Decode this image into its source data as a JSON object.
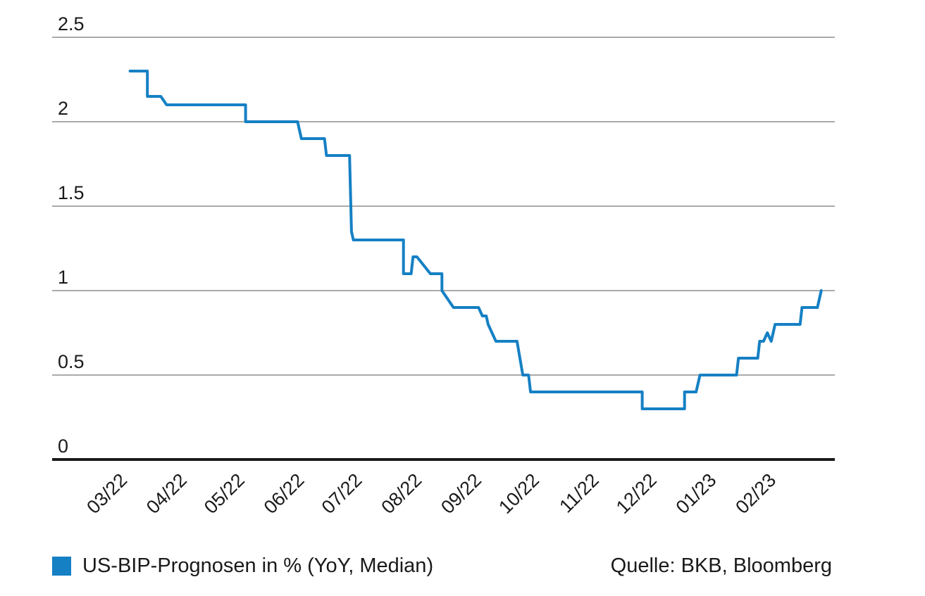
{
  "chart_data": {
    "type": "line",
    "title": "",
    "xlabel": "",
    "ylabel": "",
    "ylim": [
      0,
      2.5
    ],
    "y_ticks": [
      0,
      0.5,
      1,
      1.5,
      2,
      2.5
    ],
    "y_tick_labels": [
      "0",
      "0.5",
      "1",
      "1.5",
      "2",
      "2.5"
    ],
    "x_ticks": [
      "2022-03-01",
      "2022-04-01",
      "2022-05-01",
      "2022-06-01",
      "2022-07-01",
      "2022-08-01",
      "2022-09-01",
      "2022-10-01",
      "2022-11-01",
      "2022-12-01",
      "2023-01-01",
      "2023-02-01"
    ],
    "x_tick_labels": [
      "03/22",
      "04/22",
      "05/22",
      "06/22",
      "07/22",
      "08/22",
      "09/22",
      "10/22",
      "11/22",
      "12/22",
      "01/23",
      "02/23"
    ],
    "grid": true,
    "legend": "bottom-left",
    "series": [
      {
        "name": "US-BIP-Prognosen in % (YoY, Median)",
        "color": "#1580c4",
        "x": [
          "2022-03-10",
          "2022-03-19",
          "2022-03-19",
          "2022-03-26",
          "2022-03-29",
          "2022-05-09",
          "2022-05-09",
          "2022-06-05",
          "2022-06-07",
          "2022-06-19",
          "2022-06-20",
          "2022-07-02",
          "2022-07-03",
          "2022-07-04",
          "2022-07-06",
          "2022-07-30",
          "2022-07-30",
          "2022-08-03",
          "2022-08-04",
          "2022-08-06",
          "2022-08-13",
          "2022-08-13",
          "2022-08-19",
          "2022-08-19",
          "2022-08-25",
          "2022-09-07",
          "2022-09-09",
          "2022-09-11",
          "2022-09-12",
          "2022-09-16",
          "2022-09-27",
          "2022-09-30",
          "2022-10-03",
          "2022-10-04",
          "2022-12-01",
          "2022-12-01",
          "2022-12-23",
          "2022-12-23",
          "2022-12-29",
          "2022-12-31",
          "2023-01-19",
          "2023-01-20",
          "2023-01-30",
          "2023-01-31",
          "2023-02-02",
          "2023-02-04",
          "2023-02-06",
          "2023-02-08",
          "2023-02-21",
          "2023-02-22",
          "2023-03-02",
          "2023-03-04"
        ],
        "values": [
          2.3,
          2.3,
          2.15,
          2.15,
          2.1,
          2.1,
          2.0,
          2.0,
          1.9,
          1.9,
          1.8,
          1.8,
          1.35,
          1.3,
          1.3,
          1.3,
          1.1,
          1.1,
          1.2,
          1.2,
          1.1,
          1.1,
          1.1,
          1.0,
          0.9,
          0.9,
          0.85,
          0.85,
          0.8,
          0.7,
          0.7,
          0.5,
          0.5,
          0.4,
          0.4,
          0.3,
          0.3,
          0.4,
          0.4,
          0.5,
          0.5,
          0.6,
          0.6,
          0.7,
          0.7,
          0.75,
          0.7,
          0.8,
          0.8,
          0.9,
          0.9,
          1.0
        ]
      }
    ],
    "source_text": "Quelle: BKB, Bloomberg"
  }
}
